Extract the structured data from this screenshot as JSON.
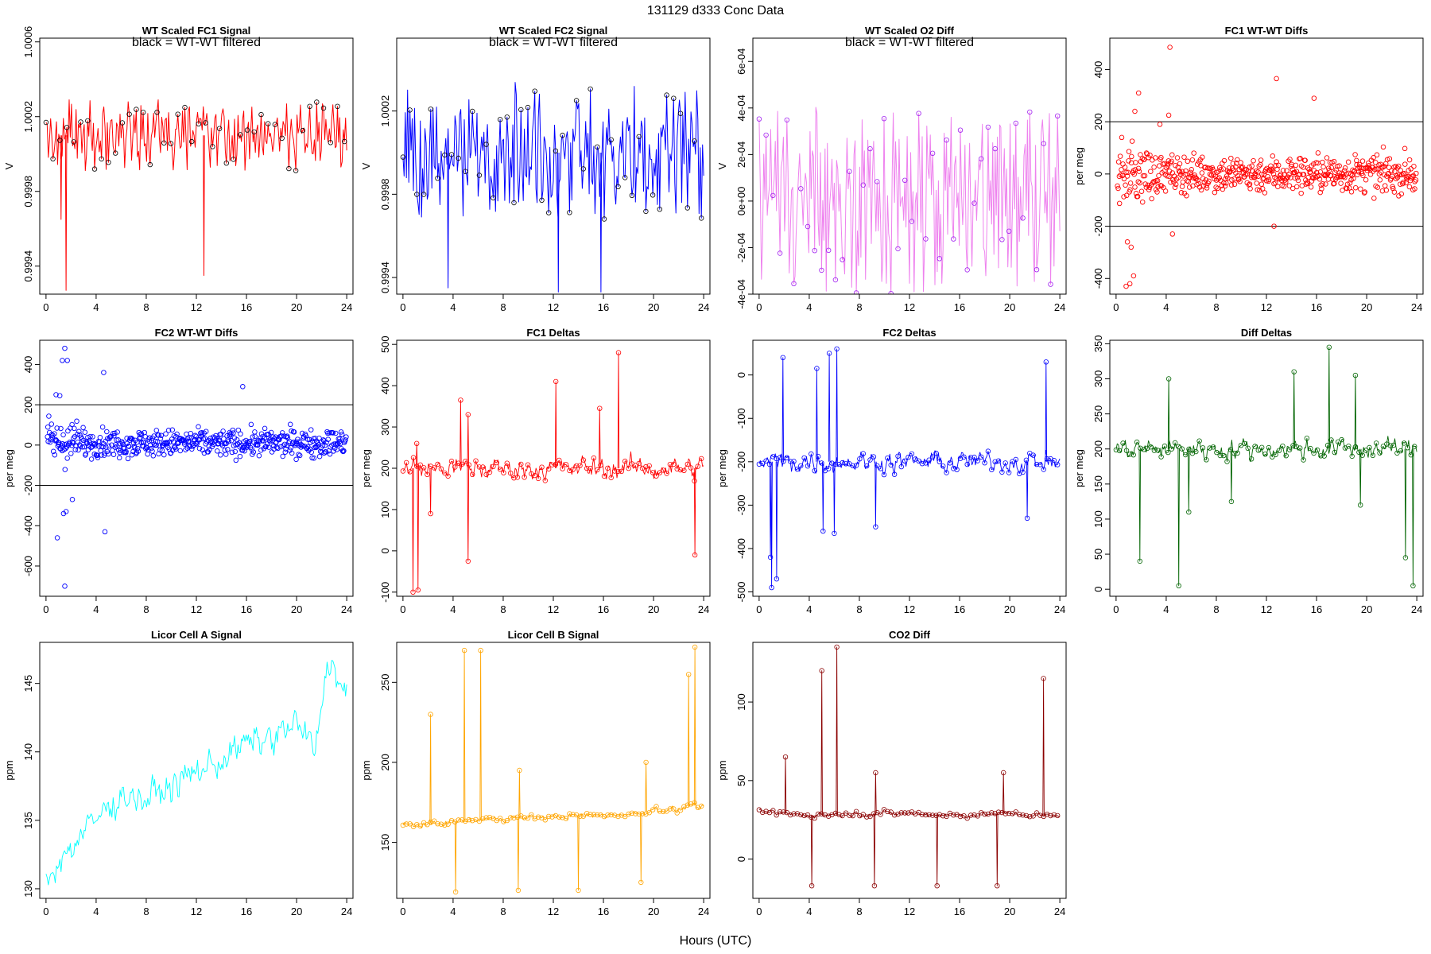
{
  "page": {
    "title": "131129   d333   Conc Data",
    "xlabel": "Hours (UTC)"
  },
  "chart_data": [
    {
      "type": "line",
      "title": "WT Scaled FC1 Signal",
      "subtitle": "black = WT-WT filtered",
      "ylabel": "V",
      "ylim": [
        0.99925,
        1.00062
      ],
      "yticks": [
        0.9994,
        0.9998,
        1.0002,
        1.0006
      ],
      "xlim": [
        -0.5,
        24.5
      ],
      "xticks": [
        0,
        4,
        8,
        12,
        16,
        20,
        24
      ],
      "color": "#ff0000",
      "marker_color": "#000000",
      "refs": [],
      "summary": {
        "baseline": 1.0001,
        "spread": 0.00012,
        "dips": [
          [
            1.6,
            0.99927
          ],
          [
            12.6,
            0.99935
          ],
          [
            1.2,
            0.99965
          ]
        ]
      }
    },
    {
      "type": "line",
      "title": "WT Scaled FC2 Signal",
      "subtitle": "black = WT-WT filtered",
      "ylabel": "V",
      "ylim": [
        0.99932,
        1.00055
      ],
      "yticks": [
        0.9994,
        0.9998,
        1.0002
      ],
      "xlim": [
        -0.5,
        24.5
      ],
      "xticks": [
        0,
        4,
        8,
        12,
        16,
        20,
        24
      ],
      "color": "#0000ff",
      "marker_color": "#000000",
      "refs": [],
      "summary": {
        "baseline": 1.0,
        "spread": 0.0002,
        "dips": [
          [
            3.6,
            0.99935
          ],
          [
            12.4,
            0.99933
          ],
          [
            15.8,
            0.99933
          ]
        ]
      }
    },
    {
      "type": "line",
      "title": "WT Scaled O2 Diff",
      "subtitle": "black = WT-WT filtered",
      "ylabel": "V",
      "ylim": [
        -0.0004,
        0.0007
      ],
      "yticks": [
        "-4e-04",
        "-2e-04",
        "0e+00",
        "2e-04",
        "4e-04",
        "6e-04"
      ],
      "xlim": [
        -0.5,
        24.5
      ],
      "xticks": [
        0,
        4,
        8,
        12,
        16,
        20,
        24
      ],
      "color": "#ee82ee",
      "marker_color": "#a020f0",
      "refs": [],
      "summary": {
        "baseline": 0.0,
        "spread": 0.00025,
        "dips": []
      }
    },
    {
      "type": "scatter",
      "title": "FC1 WT-WT Diffs",
      "subtitle": "",
      "ylabel": "per meg",
      "ylim": [
        -460,
        520
      ],
      "yticks": [
        -400,
        -200,
        0,
        200,
        400
      ],
      "xlim": [
        -0.5,
        24.5
      ],
      "xticks": [
        0,
        4,
        8,
        12,
        16,
        20,
        24
      ],
      "color": "#ff0000",
      "refs": [
        200,
        -200
      ],
      "summary": {
        "baseline": 0,
        "spread": 70,
        "outliers": [
          [
            4.3,
            485
          ],
          [
            1.5,
            240
          ],
          [
            1.8,
            310
          ],
          [
            3.5,
            190
          ],
          [
            4.2,
            225
          ],
          [
            12.8,
            365
          ],
          [
            15.8,
            290
          ],
          [
            0.8,
            -430
          ],
          [
            1.1,
            -420
          ],
          [
            1.4,
            -390
          ],
          [
            1.2,
            -280
          ],
          [
            0.9,
            -260
          ],
          [
            12.6,
            -200
          ],
          [
            4.5,
            -230
          ]
        ]
      }
    },
    {
      "type": "scatter",
      "title": "FC2 WT-WT Diffs",
      "subtitle": "",
      "ylabel": "per meg",
      "ylim": [
        -750,
        520
      ],
      "yticks": [
        -600,
        -400,
        -200,
        0,
        200,
        400
      ],
      "xlim": [
        -0.5,
        24.5
      ],
      "xticks": [
        0,
        4,
        8,
        12,
        16,
        20,
        24
      ],
      "color": "#0000ff",
      "refs": [
        200,
        -200
      ],
      "summary": {
        "baseline": 10,
        "spread": 65,
        "outliers": [
          [
            1.5,
            480
          ],
          [
            1.3,
            420
          ],
          [
            1.7,
            420
          ],
          [
            0.8,
            250
          ],
          [
            1.1,
            245
          ],
          [
            4.6,
            360
          ],
          [
            15.7,
            290
          ],
          [
            1.5,
            -700
          ],
          [
            0.9,
            -460
          ],
          [
            1.4,
            -340
          ],
          [
            1.6,
            -330
          ],
          [
            4.7,
            -430
          ],
          [
            2.1,
            -270
          ]
        ]
      }
    },
    {
      "type": "line",
      "title": "FC1 Deltas",
      "subtitle": "",
      "ylabel": "per meg",
      "ylim": [
        -110,
        510
      ],
      "yticks": [
        -100,
        0,
        100,
        200,
        300,
        400,
        500
      ],
      "xlim": [
        -0.5,
        24.5
      ],
      "xticks": [
        0,
        4,
        8,
        12,
        16,
        20,
        24
      ],
      "color": "#ff0000",
      "refs": [],
      "summary": {
        "baseline": 200,
        "spread": 22,
        "spikes": [
          [
            17.2,
            480
          ],
          [
            12.2,
            410
          ],
          [
            15.7,
            345
          ],
          [
            4.6,
            365
          ],
          [
            5.2,
            330
          ],
          [
            1.1,
            260
          ],
          [
            0.8,
            -100
          ],
          [
            1.2,
            -95
          ],
          [
            5.2,
            -25
          ],
          [
            23.3,
            -10
          ],
          [
            2.2,
            90
          ]
        ]
      }
    },
    {
      "type": "line",
      "title": "FC2 Deltas",
      "subtitle": "",
      "ylabel": "per meg",
      "ylim": [
        -510,
        80
      ],
      "yticks": [
        -500,
        -400,
        -300,
        -200,
        -100,
        0
      ],
      "xlim": [
        -0.5,
        24.5
      ],
      "xticks": [
        0,
        4,
        8,
        12,
        16,
        20,
        24
      ],
      "color": "#0000ff",
      "refs": [],
      "summary": {
        "baseline": -200,
        "spread": 20,
        "spikes": [
          [
            6.2,
            60
          ],
          [
            5.6,
            50
          ],
          [
            1.9,
            40
          ],
          [
            22.9,
            30
          ],
          [
            4.6,
            15
          ],
          [
            1.0,
            -490
          ],
          [
            1.4,
            -470
          ],
          [
            0.9,
            -420
          ],
          [
            5.1,
            -360
          ],
          [
            6.0,
            -365
          ],
          [
            21.4,
            -330
          ],
          [
            9.3,
            -350
          ]
        ]
      }
    },
    {
      "type": "line",
      "title": "Diff Deltas",
      "subtitle": "",
      "ylabel": "per meg",
      "ylim": [
        -10,
        355
      ],
      "yticks": [
        0,
        50,
        100,
        150,
        200,
        250,
        300,
        350
      ],
      "xlim": [
        -0.5,
        24.5
      ],
      "xticks": [
        0,
        4,
        8,
        12,
        16,
        20,
        24
      ],
      "color": "#006400",
      "refs": [],
      "summary": {
        "baseline": 200,
        "spread": 12,
        "spikes": [
          [
            17.0,
            345
          ],
          [
            14.2,
            310
          ],
          [
            19.1,
            305
          ],
          [
            4.2,
            300
          ],
          [
            5.0,
            5
          ],
          [
            1.9,
            40
          ],
          [
            23.7,
            5
          ],
          [
            23.1,
            45
          ],
          [
            9.2,
            125
          ],
          [
            5.8,
            110
          ],
          [
            19.5,
            120
          ]
        ]
      }
    },
    {
      "type": "line",
      "title": "Licor Cell A Signal",
      "subtitle": "",
      "ylabel": "ppm",
      "ylim": [
        129.3,
        148.0
      ],
      "yticks": [
        130,
        135,
        140,
        145
      ],
      "xlim": [
        -0.5,
        24.5
      ],
      "xticks": [
        0,
        4,
        8,
        12,
        16,
        20,
        24
      ],
      "color": "#00ffff",
      "refs": [],
      "summary": {
        "trend": [
          [
            0,
            131.0
          ],
          [
            2,
            133.0
          ],
          [
            4,
            135.0
          ],
          [
            6,
            137.0
          ],
          [
            8,
            136.5
          ],
          [
            10,
            137.5
          ],
          [
            12,
            138.5
          ],
          [
            14,
            139.5
          ],
          [
            16,
            140.5
          ],
          [
            18,
            141.0
          ],
          [
            20,
            142.0
          ],
          [
            21.5,
            140.0
          ],
          [
            22.5,
            147.0
          ],
          [
            24,
            144.0
          ]
        ],
        "spread": 1.0
      }
    },
    {
      "type": "line",
      "title": "Licor Cell B Signal",
      "subtitle": "",
      "ylabel": "ppm",
      "ylim": [
        115,
        275
      ],
      "yticks": [
        150,
        200,
        250
      ],
      "xlim": [
        -0.5,
        24.5
      ],
      "xticks": [
        0,
        4,
        8,
        12,
        16,
        20,
        24
      ],
      "color": "#ffa500",
      "refs": [],
      "summary": {
        "trend": [
          [
            0,
            161
          ],
          [
            2,
            161
          ],
          [
            4,
            163
          ],
          [
            8,
            165
          ],
          [
            12,
            166
          ],
          [
            16,
            167
          ],
          [
            19,
            168
          ],
          [
            20,
            171
          ],
          [
            22,
            170
          ],
          [
            23,
            174
          ],
          [
            24,
            171
          ]
        ],
        "spread": 1.5,
        "spikes": [
          [
            6.2,
            270
          ],
          [
            4.9,
            270
          ],
          [
            23.3,
            272
          ],
          [
            22.8,
            255
          ],
          [
            2.2,
            230
          ],
          [
            9.2,
            120
          ],
          [
            14.0,
            120
          ],
          [
            19.0,
            125
          ],
          [
            4.2,
            119
          ],
          [
            19.4,
            200
          ],
          [
            9.3,
            195
          ]
        ]
      }
    },
    {
      "type": "line",
      "title": "CO2 Diff",
      "subtitle": "",
      "ylabel": "ppm",
      "ylim": [
        -25,
        138
      ],
      "yticks": [
        0,
        50,
        100
      ],
      "xlim": [
        -0.5,
        24.5
      ],
      "xticks": [
        0,
        4,
        8,
        12,
        16,
        20,
        24
      ],
      "color": "#8b0000",
      "refs": [],
      "summary": {
        "trend": [
          [
            0,
            30
          ],
          [
            4,
            28
          ],
          [
            8,
            29
          ],
          [
            12,
            29
          ],
          [
            16,
            28
          ],
          [
            20,
            29
          ],
          [
            24,
            27
          ]
        ],
        "spread": 1.5,
        "spikes": [
          [
            6.2,
            135
          ],
          [
            5.0,
            120
          ],
          [
            22.7,
            115
          ],
          [
            2.1,
            65
          ],
          [
            9.2,
            -17
          ],
          [
            14.2,
            -17
          ],
          [
            19.0,
            -17
          ],
          [
            4.2,
            -17
          ],
          [
            19.5,
            55
          ],
          [
            9.3,
            55
          ]
        ]
      }
    }
  ]
}
